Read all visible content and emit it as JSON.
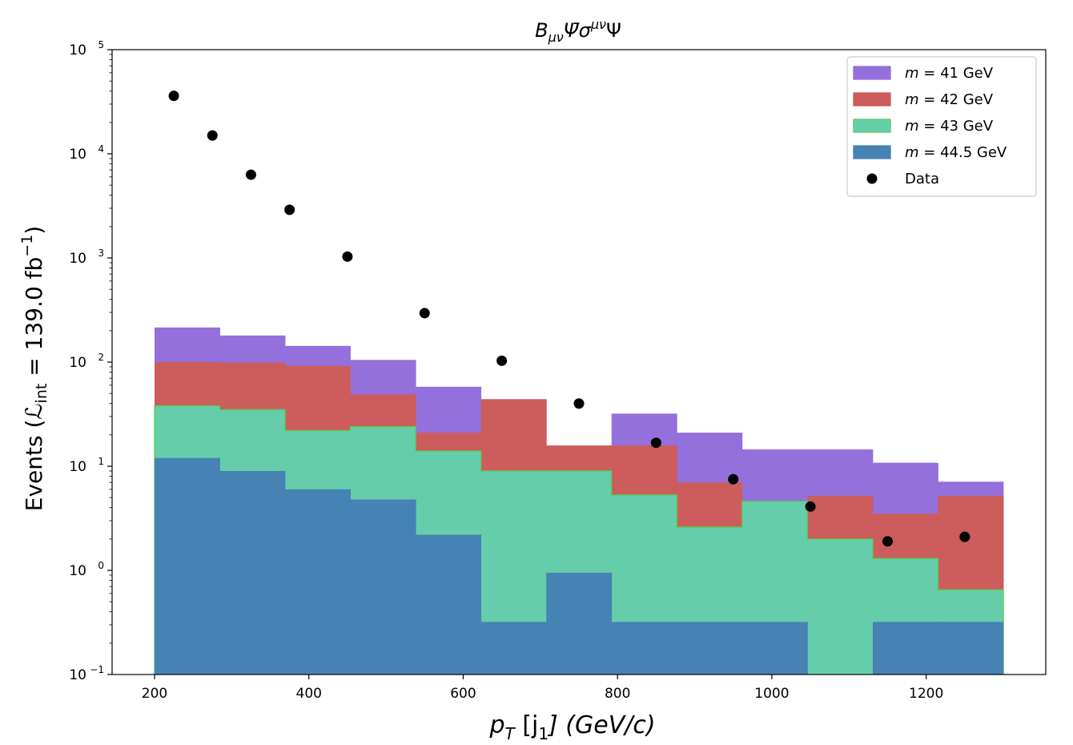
{
  "chart_data": {
    "type": "histogram-stacked",
    "title_parts": [
      "B",
      "μν",
      "Ψ̄σ",
      "μν",
      "Ψ"
    ],
    "xlabel_parts": [
      "p",
      "T",
      " [j",
      "1",
      "] (GeV/c)"
    ],
    "ylabel_parts": [
      "Events (",
      "ℒ",
      "int",
      " = 139.0 fb",
      "−1",
      ")"
    ],
    "xlim": [
      145,
      1355
    ],
    "ylim_log10": [
      -1,
      5
    ],
    "x_ticks": [
      200,
      400,
      600,
      800,
      1000,
      1200
    ],
    "y_ticks": [
      {
        "exp": -1,
        "base": "10",
        "sup": "−1"
      },
      {
        "exp": 0,
        "base": "10",
        "sup": "0"
      },
      {
        "exp": 1,
        "base": "10",
        "sup": "1"
      },
      {
        "exp": 2,
        "base": "10",
        "sup": "2"
      },
      {
        "exp": 3,
        "base": "10",
        "sup": "3"
      },
      {
        "exp": 4,
        "base": "10",
        "sup": "4"
      },
      {
        "exp": 5,
        "base": "10",
        "sup": "5"
      }
    ],
    "bin_edges": [
      200,
      284.6,
      369.2,
      453.8,
      538.5,
      623.1,
      707.7,
      792.3,
      876.9,
      961.5,
      1046.2,
      1130.8,
      1215.4,
      1300
    ],
    "series": [
      {
        "name": "m = 44.5 GeV",
        "color": "#4682b4",
        "edge": "#4682b4",
        "values": [
          12,
          9,
          6,
          4.8,
          2.2,
          0.32,
          0.95,
          0.32,
          0.32,
          0.32,
          0.1,
          0.32,
          0.32
        ]
      },
      {
        "name": "m = 43 GeV",
        "color": "#66cdaa",
        "edge": "#55cc55",
        "values": [
          38,
          35,
          22,
          24,
          14,
          9,
          9,
          5.3,
          2.6,
          4.6,
          2,
          1.3,
          0.65
        ]
      },
      {
        "name": "m = 42 GeV",
        "color": "#cd5c5c",
        "edge": "#cd5c5c",
        "values": [
          100,
          99,
          92,
          49,
          21,
          44,
          15.8,
          15.8,
          7,
          4.6,
          5.2,
          3.5,
          5.2
        ]
      },
      {
        "name": "m = 41 GeV",
        "color": "#9370db",
        "edge": "#9370db",
        "values": [
          215,
          180,
          143,
          105,
          58,
          44,
          15.8,
          32,
          21,
          14.5,
          14.5,
          10.8,
          7.1
        ]
      }
    ],
    "data_points": {
      "name": "Data",
      "color": "#000000",
      "x": [
        225,
        275,
        325,
        375,
        450,
        550,
        650,
        750,
        850,
        950,
        1050,
        1150,
        1250
      ],
      "y": [
        36000,
        15000,
        6300,
        2900,
        1030,
        295,
        103,
        40,
        16.8,
        7.5,
        4.1,
        1.9,
        2.1
      ]
    },
    "legend": {
      "position": "top-right",
      "entries": [
        {
          "m": "m",
          "eq": " = 41 GeV",
          "color": "#9370db",
          "edge": "#9370db",
          "kind": "patch"
        },
        {
          "m": "m",
          "eq": " = 42 GeV",
          "color": "#cd5c5c",
          "edge": "#cd5c5c",
          "kind": "patch"
        },
        {
          "m": "m",
          "eq": " = 43 GeV",
          "color": "#66cdaa",
          "edge": "#55cc55",
          "kind": "patch"
        },
        {
          "m": "m",
          "eq": " = 44.5 GeV",
          "color": "#4682b4",
          "edge": "#4682b4",
          "kind": "patch"
        },
        {
          "m": "",
          "eq": "Data",
          "color": "#000000",
          "edge": "#000000",
          "kind": "marker"
        }
      ]
    }
  }
}
